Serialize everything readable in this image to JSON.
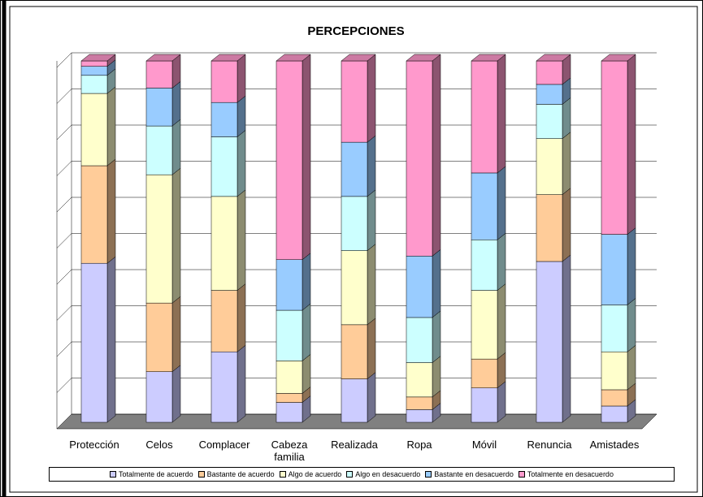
{
  "chart_data": {
    "type": "bar3d_stacked",
    "title": "PERCEPCIONES",
    "categories": [
      "Protección",
      "Celos",
      "Complacer",
      "Cabeza familia",
      "Realizada",
      "Ropa",
      "Móvil",
      "Renuncia",
      "Amistades"
    ],
    "series": [
      {
        "name": "Totalmente de acuerdo",
        "color": "#ccccff",
        "values": [
          44,
          14,
          19.5,
          5.5,
          12,
          3.5,
          9.5,
          44.5,
          4.5
        ]
      },
      {
        "name": "Bastante de acuerdo",
        "color": "#ffcc99",
        "values": [
          27,
          19,
          17,
          2.5,
          15,
          3.5,
          8,
          18.5,
          4.5
        ]
      },
      {
        "name": "Algo de acuerdo",
        "color": "#ffffcc",
        "values": [
          20,
          35.5,
          26,
          9,
          20.5,
          9.5,
          19,
          15.5,
          10.5
        ]
      },
      {
        "name": "Algo en desacuerdo",
        "color": "#ccffff",
        "values": [
          5,
          13.5,
          16.5,
          14,
          15,
          12.5,
          14,
          9.5,
          13
        ]
      },
      {
        "name": "Bastante en desacuerdo",
        "color": "#99ccff",
        "values": [
          2.5,
          10.5,
          9.5,
          14,
          15,
          17,
          18.5,
          5.5,
          19.5
        ]
      },
      {
        "name": "Totalmente en desacuerdo",
        "color": "#ff99cc",
        "values": [
          1.5,
          7.5,
          11.5,
          55,
          22.5,
          54,
          31,
          6.5,
          48
        ]
      }
    ],
    "ylim": [
      0,
      100
    ],
    "yticks": [
      0,
      10,
      20,
      30,
      40,
      50,
      60,
      70,
      80,
      90,
      100
    ],
    "grid": true,
    "legend": "bottom"
  }
}
